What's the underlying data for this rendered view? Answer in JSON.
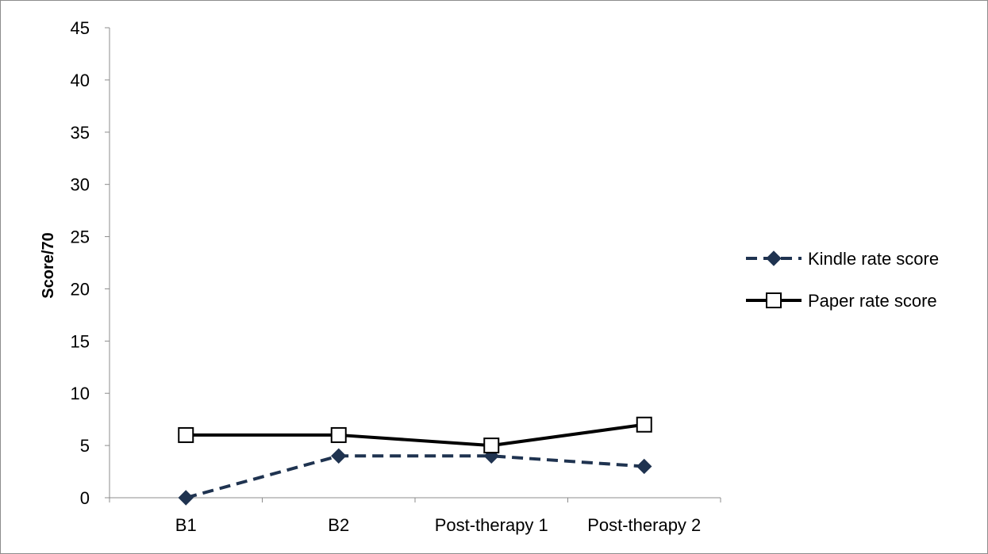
{
  "chart_data": {
    "type": "line",
    "title": "",
    "xlabel": "",
    "ylabel": "Score/70",
    "categories": [
      "B1",
      "B2",
      "Post-therapy 1",
      "Post-therapy 2"
    ],
    "ylim": [
      0,
      45
    ],
    "yticks": [
      0,
      5,
      10,
      15,
      20,
      25,
      30,
      35,
      40,
      45
    ],
    "grid": false,
    "legend_position": "right",
    "series": [
      {
        "name": "Kindle rate score",
        "values": [
          0,
          4,
          4,
          3
        ],
        "color": "#1f3350",
        "line_style": "dashed",
        "marker": "diamond"
      },
      {
        "name": "Paper rate score",
        "values": [
          6,
          6,
          5,
          7
        ],
        "color": "#000000",
        "line_style": "solid",
        "marker": "open-square"
      }
    ]
  }
}
